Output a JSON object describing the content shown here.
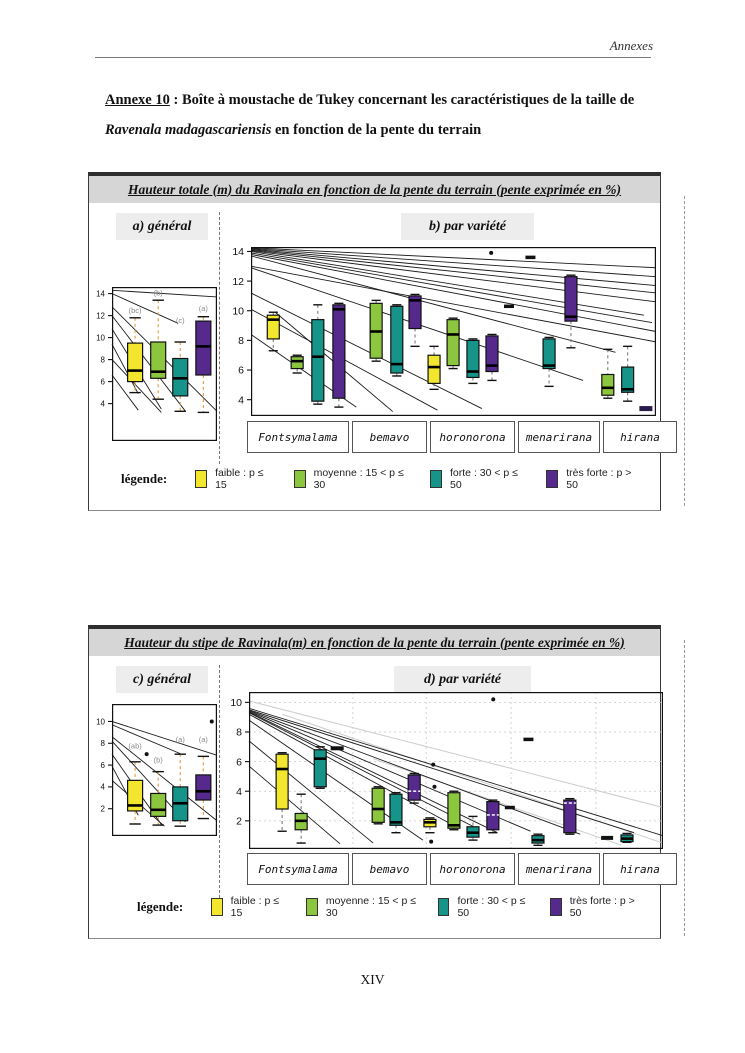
{
  "page": {
    "header_label": "Annexes",
    "footer_page_number": "XIV"
  },
  "doc_title": {
    "anchor": "Annexe 10",
    "separator": " : ",
    "lead": "Boîte à moustache de Tukey concernant les caractéristiques de la taille de ",
    "species": "Ravenala madagascariensis",
    "tail": " en fonction de la pente du terrain"
  },
  "colors": {
    "faible": "#f2e62e",
    "moyenne": "#8cc63f",
    "forte": "#17948a",
    "tres_forte": "#552a8c",
    "whisker_orange": "#e39a3b",
    "titlebar": "#d6d6d6"
  },
  "categories": [
    "Fontsymalama",
    "bemavo",
    "horonorona",
    "menarirana",
    "hirana"
  ],
  "legend": {
    "title": "légende:",
    "items": [
      {
        "class": "faible",
        "label": "faible : p ≤ 15"
      },
      {
        "class": "moyenne",
        "label": "moyenne : 15 < p ≤ 30"
      },
      {
        "class": "forte",
        "label": "forte : 30 < p ≤ 50"
      },
      {
        "class": "tres_forte",
        "label": "très forte : p > 50"
      }
    ]
  },
  "figure1": {
    "title": "Hauteur totale (m) du Ravinala en fonction de la pente du terrain (pente exprimée en %)",
    "panel_left_label": "a) général",
    "panel_right_label": "b) par variété"
  },
  "figure2": {
    "title": "Hauteur du stipe de Ravinala(m) en fonction de la pente du terrain (pente exprimée en %)",
    "panel_left_label": "c) général",
    "panel_right_label": "d) par variété"
  },
  "chart_data": [
    {
      "id": "a",
      "type": "boxplot",
      "title": "Hauteur totale (m) — général",
      "ylim": [
        0.6,
        14.6
      ],
      "yticks": [
        4,
        6,
        8,
        10,
        12,
        14
      ],
      "whisker": "orange",
      "boxes": [
        {
          "class": "faible",
          "xf": 0.22,
          "lo": 5.0,
          "q1": 6.0,
          "med": 7.0,
          "q3": 9.5,
          "hi": 11.8,
          "letter": "(bc)",
          "letter_y": 12.4
        },
        {
          "class": "moyenne",
          "xf": 0.44,
          "lo": 4.4,
          "q1": 6.3,
          "med": 6.9,
          "q3": 9.6,
          "hi": 13.4,
          "letter": "(b)",
          "letter_y": 14.0
        },
        {
          "class": "forte",
          "xf": 0.65,
          "lo": 3.3,
          "q1": 4.7,
          "med": 6.3,
          "q3": 8.1,
          "hi": 9.6,
          "letter": "(c)",
          "letter_y": 11.5
        },
        {
          "class": "tres_forte",
          "xf": 0.87,
          "lo": 3.2,
          "q1": 6.6,
          "med": 9.2,
          "q3": 11.5,
          "hi": 11.9,
          "letter": "(a)",
          "letter_y": 12.6
        }
      ],
      "marks": [],
      "lines": [
        [
          0,
          14.3,
          1,
          13.7
        ],
        [
          0,
          14.0,
          0.63,
          11.3
        ],
        [
          0,
          12.8,
          1,
          3.3
        ],
        [
          0,
          12.0,
          0.7,
          3.3
        ],
        [
          0,
          10.8,
          0.47,
          3.5
        ],
        [
          0,
          9.4,
          0.25,
          4.9
        ],
        [
          0,
          8.0,
          0.47,
          3.2
        ],
        [
          0,
          6.6,
          0.25,
          3.4
        ]
      ]
    },
    {
      "id": "b",
      "type": "boxplot",
      "title": "Hauteur totale (m) — par variété",
      "ylim": [
        2.9,
        14.3
      ],
      "yticks": [
        4,
        6,
        8,
        10,
        12,
        14
      ],
      "whisker": "gray",
      "boxes": [
        {
          "group": "Fontsymalama",
          "class": "faible",
          "xf": 0.055,
          "lo": 7.3,
          "q1": 8.1,
          "med": 9.4,
          "q3": 9.7,
          "hi": 9.9
        },
        {
          "group": "Fontsymalama",
          "class": "moyenne",
          "xf": 0.114,
          "lo": 5.8,
          "q1": 6.1,
          "med": 6.6,
          "q3": 6.9,
          "hi": 7.0
        },
        {
          "group": "Fontsymalama",
          "class": "forte",
          "xf": 0.165,
          "lo": 3.7,
          "q1": 3.9,
          "med": 6.9,
          "q3": 9.4,
          "hi": 10.4
        },
        {
          "group": "Fontsymalama",
          "class": "tres_forte",
          "xf": 0.217,
          "lo": 3.5,
          "q1": 4.1,
          "med": 10.1,
          "q3": 10.4,
          "hi": 10.5
        },
        {
          "group": "bemavo",
          "class": "moyenne",
          "xf": 0.309,
          "lo": 6.6,
          "q1": 6.8,
          "med": 8.6,
          "q3": 10.5,
          "hi": 10.7
        },
        {
          "group": "bemavo",
          "class": "forte",
          "xf": 0.36,
          "lo": 5.6,
          "q1": 5.8,
          "med": 6.4,
          "q3": 10.3,
          "hi": 10.4
        },
        {
          "group": "bemavo",
          "class": "tres_forte",
          "xf": 0.405,
          "lo": 7.6,
          "q1": 8.8,
          "med": 10.7,
          "q3": 11.0,
          "hi": 11.1
        },
        {
          "group": "horonorona",
          "class": "faible",
          "xf": 0.452,
          "lo": 4.7,
          "q1": 5.1,
          "med": 6.2,
          "q3": 7.0,
          "hi": 7.6
        },
        {
          "group": "horonorona",
          "class": "moyenne",
          "xf": 0.499,
          "lo": 6.1,
          "q1": 6.3,
          "med": 8.4,
          "q3": 9.4,
          "hi": 9.5
        },
        {
          "group": "horonorona",
          "class": "forte",
          "xf": 0.548,
          "lo": 5.1,
          "q1": 5.5,
          "med": 5.9,
          "q3": 8.0,
          "hi": 8.1
        },
        {
          "group": "horonorona",
          "class": "tres_forte",
          "xf": 0.595,
          "lo": 5.3,
          "q1": 5.9,
          "med": 6.3,
          "q3": 8.3,
          "hi": 8.4
        },
        {
          "group": "menarirana",
          "class": "forte",
          "xf": 0.736,
          "lo": 4.9,
          "q1": 6.1,
          "med": 6.3,
          "q3": 8.1,
          "hi": 8.2
        },
        {
          "group": "menarirana",
          "class": "tres_forte",
          "xf": 0.79,
          "lo": 7.5,
          "q1": 9.3,
          "med": 9.6,
          "q3": 12.3,
          "hi": 12.4
        },
        {
          "group": "hirana",
          "class": "moyenne",
          "xf": 0.881,
          "lo": 4.1,
          "q1": 4.3,
          "med": 4.8,
          "q3": 5.7,
          "hi": 7.4
        },
        {
          "group": "hirana",
          "class": "forte",
          "xf": 0.93,
          "lo": 3.9,
          "q1": 4.5,
          "med": 4.7,
          "q3": 6.2,
          "hi": 7.6
        }
      ],
      "marks": [
        {
          "kind": "dot",
          "xf": 0.593,
          "y": 13.9
        },
        {
          "kind": "dash",
          "xf": 0.69,
          "y": 13.6
        },
        {
          "kind": "dash",
          "xf": 0.637,
          "y": 10.3
        },
        {
          "kind": "dash",
          "xf": 0.975,
          "y": 3.4,
          "color": "#2a1a47",
          "w": 13,
          "h": 5
        }
      ],
      "lines": [
        [
          0,
          14.25,
          1,
          12.9
        ],
        [
          0,
          14.2,
          1,
          12.3
        ],
        [
          0,
          14.15,
          1,
          11.7
        ],
        [
          0,
          14.1,
          1,
          11.2
        ],
        [
          0,
          14.05,
          1,
          10.6
        ],
        [
          0,
          14.0,
          0.97,
          9.7
        ],
        [
          0,
          13.9,
          0.99,
          9.2
        ],
        [
          0,
          13.8,
          1,
          8.6
        ],
        [
          0,
          13.7,
          0.9,
          7.2
        ],
        [
          0,
          13.0,
          1,
          7.9
        ],
        [
          0,
          12.9,
          0.82,
          5.3
        ],
        [
          0,
          11.2,
          0.57,
          3.4
        ],
        [
          0,
          10.1,
          0.46,
          3.3
        ],
        [
          0,
          8.4,
          0.26,
          3.5
        ],
        [
          0.06,
          9.9,
          0.35,
          3.2
        ]
      ]
    },
    {
      "id": "c",
      "type": "boxplot",
      "title": "Hauteur du stipe (m) — général",
      "ylim": [
        -0.5,
        11.6
      ],
      "yticks": [
        2,
        4,
        6,
        8,
        10
      ],
      "whisker": "orange",
      "boxes": [
        {
          "class": "faible",
          "xf": 0.22,
          "lo": 0.6,
          "q1": 1.8,
          "med": 2.3,
          "q3": 4.6,
          "hi": 6.3,
          "letter": "(ab)",
          "letter_y": 7.7
        },
        {
          "class": "moyenne",
          "xf": 0.44,
          "lo": 0.5,
          "q1": 1.3,
          "med": 1.9,
          "q3": 3.4,
          "hi": 5.4,
          "letter": "(b)",
          "letter_y": 6.4
        },
        {
          "class": "forte",
          "xf": 0.65,
          "lo": 0.4,
          "q1": 0.9,
          "med": 2.5,
          "q3": 4.0,
          "hi": 7.0,
          "letter": "(a)",
          "letter_y": 8.3
        },
        {
          "class": "tres_forte",
          "xf": 0.87,
          "lo": 1.1,
          "q1": 2.8,
          "med": 3.6,
          "q3": 5.1,
          "hi": 6.8,
          "letter": "(a)",
          "letter_y": 8.3
        }
      ],
      "marks": [
        {
          "kind": "dot",
          "xf": 0.33,
          "y": 7.0
        },
        {
          "kind": "dot",
          "xf": 0.95,
          "y": 10.0
        }
      ],
      "lines": [
        [
          0,
          10.0,
          1,
          6.9
        ],
        [
          0,
          9.7,
          0.65,
          7.05
        ],
        [
          0,
          8.6,
          1,
          0.9
        ],
        [
          0,
          8.2,
          0.7,
          0.8
        ],
        [
          0,
          7.0,
          0.47,
          0.55
        ],
        [
          0,
          5.9,
          0.25,
          1.4
        ],
        [
          0,
          4.6,
          0.5,
          0.4
        ]
      ]
    },
    {
      "id": "d",
      "type": "boxplot",
      "title": "Hauteur du stipe (m) — par variété",
      "ylim": [
        0.1,
        10.7
      ],
      "yticks": [
        2,
        4,
        6,
        8,
        10
      ],
      "whisker": "gray",
      "grid": {
        "v": [
          0.251,
          0.428,
          0.633,
          0.838
        ],
        "h": [
          2,
          4,
          6,
          8,
          10
        ]
      },
      "boxes": [
        {
          "group": "Fontsymalama",
          "class": "faible",
          "xf": 0.08,
          "lo": 1.3,
          "q1": 2.8,
          "med": 5.5,
          "q3": 6.5,
          "hi": 6.6
        },
        {
          "group": "Fontsymalama",
          "class": "moyenne",
          "xf": 0.126,
          "lo": 0.5,
          "q1": 1.4,
          "med": 2.0,
          "q3": 2.5,
          "hi": 3.8
        },
        {
          "group": "Fontsymalama",
          "class": "forte",
          "xf": 0.172,
          "lo": 4.2,
          "q1": 4.3,
          "med": 6.2,
          "q3": 6.8,
          "hi": 7.0
        },
        {
          "group": "bemavo",
          "class": "moyenne",
          "xf": 0.312,
          "lo": 1.8,
          "q1": 1.9,
          "med": 2.8,
          "q3": 4.2,
          "hi": 4.3
        },
        {
          "group": "bemavo",
          "class": "forte",
          "xf": 0.355,
          "lo": 1.2,
          "q1": 1.7,
          "med": 1.9,
          "q3": 3.8,
          "hi": 3.9
        },
        {
          "group": "bemavo",
          "class": "tres_forte",
          "xf": 0.399,
          "lo": 3.2,
          "q1": 3.4,
          "med": 4.0,
          "q3": 5.1,
          "hi": 5.2,
          "med_light": true
        },
        {
          "group": "horonorona",
          "class": "faible",
          "xf": 0.437,
          "lo": 1.2,
          "q1": 1.6,
          "med": 1.9,
          "q3": 2.1,
          "hi": 2.2
        },
        {
          "group": "horonorona",
          "class": "moyenne",
          "xf": 0.495,
          "lo": 1.4,
          "q1": 1.5,
          "med": 1.7,
          "q3": 3.9,
          "hi": 4.0
        },
        {
          "group": "horonorona",
          "class": "forte",
          "xf": 0.541,
          "lo": 0.7,
          "q1": 0.9,
          "med": 1.2,
          "q3": 1.6,
          "hi": 2.3
        },
        {
          "group": "horonorona",
          "class": "tres_forte",
          "xf": 0.589,
          "lo": 1.2,
          "q1": 1.4,
          "med": 2.4,
          "q3": 3.3,
          "hi": 3.4,
          "med_light": true
        },
        {
          "group": "menarirana",
          "class": "forte",
          "xf": 0.698,
          "lo": 0.35,
          "q1": 0.5,
          "med": 0.7,
          "q3": 1.0,
          "hi": 1.1
        },
        {
          "group": "menarirana",
          "class": "tres_forte",
          "xf": 0.775,
          "lo": 1.1,
          "q1": 1.2,
          "med": 3.2,
          "q3": 3.4,
          "hi": 3.5,
          "med_light": true
        },
        {
          "group": "hirana",
          "class": "forte",
          "xf": 0.913,
          "lo": 0.55,
          "q1": 0.6,
          "med": 0.8,
          "q3": 1.05,
          "hi": 1.15
        }
      ],
      "marks": [
        {
          "kind": "dash",
          "xf": 0.213,
          "y": 6.9,
          "w": 13,
          "h": 4
        },
        {
          "kind": "dot",
          "xf": 0.445,
          "y": 5.8
        },
        {
          "kind": "dot",
          "xf": 0.448,
          "y": 4.3
        },
        {
          "kind": "dot",
          "xf": 0.44,
          "y": 0.6
        },
        {
          "kind": "dot",
          "xf": 0.59,
          "y": 10.2
        },
        {
          "kind": "dash",
          "xf": 0.63,
          "y": 2.9
        },
        {
          "kind": "dash",
          "xf": 0.675,
          "y": 7.5
        },
        {
          "kind": "dash",
          "xf": 0.865,
          "y": 0.85,
          "w": 12,
          "h": 4
        }
      ],
      "lines": [
        [
          0,
          9.6,
          1,
          1.0
        ],
        [
          0,
          9.5,
          0.93,
          1.2
        ],
        [
          0,
          9.45,
          0.8,
          1.1
        ],
        [
          0,
          9.4,
          0.68,
          1.3
        ],
        [
          0,
          9.35,
          0.6,
          1.2
        ],
        [
          0,
          9.3,
          0.55,
          1.5
        ],
        [
          0,
          9.2,
          0.5,
          1.6
        ],
        [
          0,
          8.8,
          0.42,
          0.7
        ],
        [
          0,
          7.4,
          0.3,
          0.5
        ],
        [
          0,
          5.7,
          0.22,
          0.45
        ]
      ],
      "light_lines": [
        [
          0,
          10.1,
          1,
          2.9
        ],
        [
          0.08,
          9.2,
          1,
          0.5
        ],
        [
          0.3,
          6.2,
          0.9,
          0.35
        ]
      ]
    }
  ]
}
